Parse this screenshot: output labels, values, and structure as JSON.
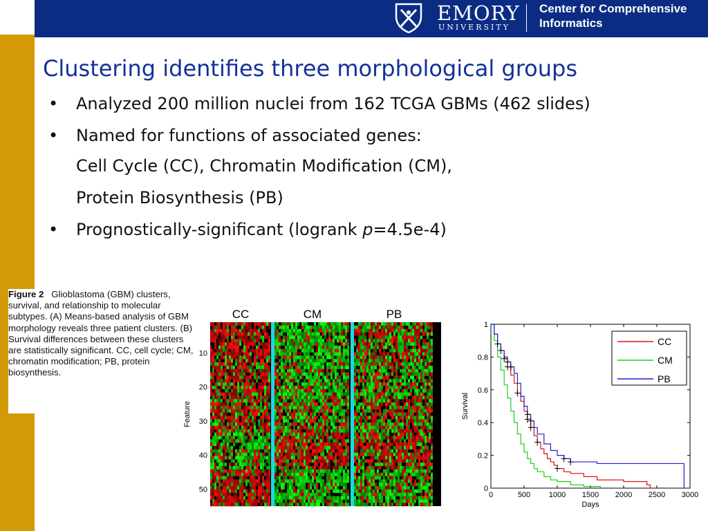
{
  "header": {
    "university_name": "EMORY",
    "university_sub": "UNIVERSITY",
    "center_line1": "Center for Comprehensive",
    "center_line2": "Informatics",
    "header_color": "#0c2c84",
    "side_color": "#d39a06"
  },
  "slide": {
    "title": "Clustering identifies three morphological groups",
    "bullets": [
      "Analyzed 200 million nuclei from 162 TCGA GBMs (462 slides)",
      "Named for functions of associated genes:",
      "Cell Cycle (CC), Chromatin Modification (CM),",
      "Protein Biosynthesis (PB)",
      "Prognostically-significant (logrank p=4.5e-4)"
    ],
    "bullet_p_prefix": "Prognostically-significant (logrank ",
    "bullet_p_italic": "p",
    "bullet_p_suffix": "=4.5e-4)"
  },
  "caption": {
    "label": "Figure 2",
    "text": "Glioblastoma (GBM) clusters, survival, and relationship to molecular subtypes. (A) Means-based analysis of GBM morphology reveals three patient clusters. (B) Survival differences between these clusters are statistically significant. CC, cell cycle; CM, chromatin modification; PB, protein biosynthesis."
  },
  "chart_data": [
    {
      "type": "heatmap",
      "columns": [
        "CC",
        "CM",
        "PB"
      ],
      "ylabel": "Feature",
      "yticks": [
        10,
        20,
        30,
        40,
        50
      ],
      "ylim": [
        1,
        55
      ],
      "colors": {
        "high": "#e01010",
        "low": "#10c010",
        "separator": "#19d9e8"
      }
    },
    {
      "type": "line",
      "xlabel": "Days",
      "ylabel": "Survival",
      "xlim": [
        0,
        3000
      ],
      "ylim": [
        0,
        1
      ],
      "xticks": [
        0,
        500,
        1000,
        1500,
        2000,
        2500,
        3000
      ],
      "yticks": [
        0,
        0.2,
        0.4,
        0.6,
        0.8,
        1
      ],
      "yticklabels": [
        "0",
        "0.2",
        "0.4",
        "0.6",
        "0.8",
        "1"
      ],
      "legend_position": "top-right",
      "series": [
        {
          "name": "CC",
          "color": "#e01010",
          "x": [
            0,
            50,
            100,
            150,
            200,
            250,
            300,
            350,
            400,
            450,
            500,
            550,
            600,
            650,
            700,
            750,
            800,
            850,
            900,
            950,
            1000,
            1100,
            1200,
            1400,
            1600,
            2000,
            2350,
            2400
          ],
          "y": [
            1,
            0.94,
            0.88,
            0.84,
            0.79,
            0.74,
            0.69,
            0.64,
            0.58,
            0.53,
            0.47,
            0.42,
            0.37,
            0.32,
            0.28,
            0.24,
            0.21,
            0.18,
            0.16,
            0.14,
            0.12,
            0.1,
            0.09,
            0.07,
            0.05,
            0.04,
            0.02,
            0
          ]
        },
        {
          "name": "CM",
          "color": "#20cc20",
          "x": [
            0,
            50,
            100,
            150,
            200,
            250,
            300,
            350,
            400,
            450,
            500,
            550,
            600,
            650,
            700,
            800,
            900,
            1000,
            1200,
            1400,
            1600,
            1650
          ],
          "y": [
            1,
            0.9,
            0.8,
            0.72,
            0.63,
            0.55,
            0.47,
            0.4,
            0.33,
            0.27,
            0.22,
            0.18,
            0.15,
            0.12,
            0.1,
            0.07,
            0.05,
            0.04,
            0.02,
            0.01,
            0.01,
            0
          ]
        },
        {
          "name": "PB",
          "color": "#1a20cc",
          "x": [
            0,
            50,
            100,
            150,
            200,
            250,
            300,
            350,
            400,
            450,
            500,
            550,
            600,
            650,
            700,
            800,
            900,
            1000,
            1100,
            1200,
            1600,
            2000,
            2500,
            2900,
            2910
          ],
          "y": [
            1,
            0.94,
            0.88,
            0.84,
            0.8,
            0.77,
            0.74,
            0.7,
            0.64,
            0.56,
            0.5,
            0.45,
            0.41,
            0.37,
            0.33,
            0.27,
            0.23,
            0.2,
            0.18,
            0.16,
            0.15,
            0.15,
            0.15,
            0.15,
            0
          ]
        }
      ]
    }
  ]
}
